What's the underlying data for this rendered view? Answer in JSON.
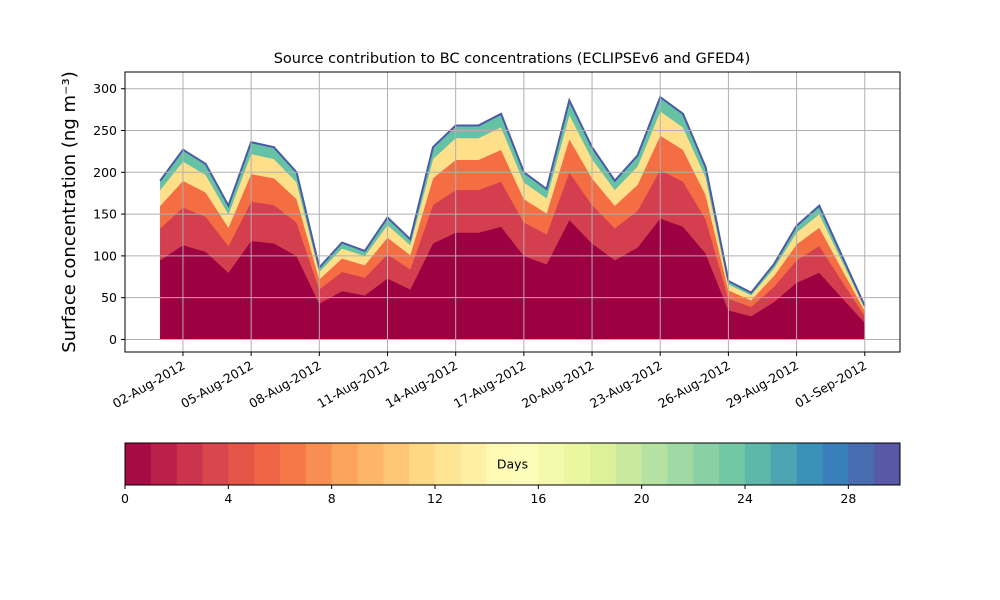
{
  "chart_data": {
    "type": "stacked_area",
    "title": "Source contribution to BC concentrations (ECLIPSEv6 and GFED4)",
    "y_label": "Surface concentration (ng m⁻³)",
    "x": [
      "2012-08-01",
      "2012-08-02",
      "2012-08-03",
      "2012-08-04",
      "2012-08-05",
      "2012-08-06",
      "2012-08-07",
      "2012-08-08",
      "2012-08-09",
      "2012-08-10",
      "2012-08-11",
      "2012-08-12",
      "2012-08-13",
      "2012-08-14",
      "2012-08-15",
      "2012-08-16",
      "2012-08-17",
      "2012-08-18",
      "2012-08-19",
      "2012-08-20",
      "2012-08-21",
      "2012-08-22",
      "2012-08-23",
      "2012-08-24",
      "2012-08-25",
      "2012-08-26",
      "2012-08-27",
      "2012-08-28",
      "2012-08-29",
      "2012-08-30",
      "2012-08-31",
      "2012-09-01"
    ],
    "series": [
      {
        "color": "#9e0142",
        "values": [
          95,
          113,
          105,
          80,
          118,
          115,
          100,
          43,
          58,
          53,
          73,
          60,
          115,
          128,
          128,
          135,
          100,
          90,
          143,
          115,
          95,
          110,
          145,
          135,
          103,
          35,
          28,
          45,
          68,
          80,
          50,
          20
        ]
      },
      {
        "color": "#d53e4f",
        "values": [
          38,
          45,
          42,
          32,
          47,
          46,
          40,
          17,
          23,
          21,
          29,
          24,
          46,
          51,
          51,
          54,
          40,
          36,
          57,
          46,
          38,
          44,
          58,
          54,
          41,
          14,
          11,
          18,
          27,
          32,
          20,
          8
        ]
      },
      {
        "color": "#f46d43",
        "values": [
          27,
          32,
          29,
          22,
          33,
          32,
          28,
          12,
          16,
          15,
          20,
          17,
          32,
          36,
          36,
          38,
          28,
          25,
          40,
          32,
          27,
          31,
          41,
          38,
          29,
          10,
          8,
          13,
          19,
          22,
          14,
          6
        ]
      },
      {
        "color": "#fee08b",
        "values": [
          19,
          23,
          21,
          16,
          24,
          23,
          20,
          9,
          12,
          11,
          15,
          12,
          23,
          26,
          26,
          27,
          20,
          18,
          29,
          23,
          19,
          22,
          29,
          27,
          21,
          7,
          6,
          9,
          14,
          16,
          10,
          4
        ]
      },
      {
        "color": "#66c2a5",
        "values": [
          11,
          14,
          13,
          10,
          14,
          14,
          12,
          5,
          7,
          6,
          9,
          7,
          14,
          15,
          15,
          16,
          12,
          11,
          17,
          14,
          11,
          13,
          17,
          16,
          12,
          4,
          3,
          5,
          8,
          10,
          6,
          2
        ]
      }
    ],
    "xlim": [
      "2012-08-01",
      "2012-09-01"
    ],
    "xticks": [
      {
        "value": "2012-08-02",
        "label": "02-Aug-2012"
      },
      {
        "value": "2012-08-05",
        "label": "05-Aug-2012"
      },
      {
        "value": "2012-08-08",
        "label": "08-Aug-2012"
      },
      {
        "value": "2012-08-11",
        "label": "11-Aug-2012"
      },
      {
        "value": "2012-08-14",
        "label": "14-Aug-2012"
      },
      {
        "value": "2012-08-17",
        "label": "17-Aug-2012"
      },
      {
        "value": "2012-08-20",
        "label": "20-Aug-2012"
      },
      {
        "value": "2012-08-23",
        "label": "23-Aug-2012"
      },
      {
        "value": "2012-08-26",
        "label": "26-Aug-2012"
      },
      {
        "value": "2012-08-29",
        "label": "29-Aug-2012"
      },
      {
        "value": "2012-09-01",
        "label": "01-Sep-2012"
      }
    ],
    "ylim": [
      -15,
      320
    ],
    "yticks": [
      0,
      50,
      100,
      150,
      200,
      250,
      300
    ],
    "grid": true,
    "colorbar": {
      "label": "Days",
      "colors": [
        "#9e0142",
        "#d53e4f",
        "#f46d43",
        "#fdae61",
        "#fee08b",
        "#ffffbf",
        "#e6f598",
        "#abdda4",
        "#66c2a5",
        "#3288bd",
        "#5e4fa2"
      ],
      "levels": 30,
      "lim": [
        0,
        30
      ],
      "ticks": [
        0,
        4,
        8,
        12,
        16,
        20,
        24,
        28
      ]
    }
  }
}
